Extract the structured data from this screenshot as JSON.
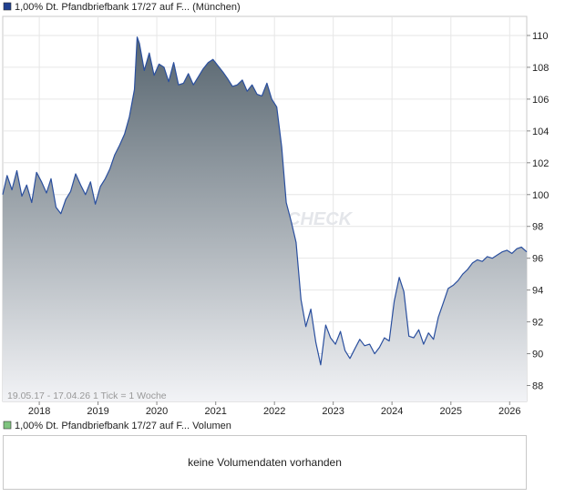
{
  "chart_data": {
    "type": "area",
    "title": "1,00% Dt. Pfandbriefbank 17/27 auf F... (München)",
    "series": [
      {
        "name": "1,00% Dt. Pfandbriefbank 17/27 auf F... (München)",
        "x": [
          "2017-05-19",
          "2017-06-15",
          "2017-07-15",
          "2017-08-15",
          "2017-09-15",
          "2017-10-15",
          "2017-11-15",
          "2017-12-15",
          "2018-01-15",
          "2018-02-15",
          "2018-03-15",
          "2018-04-15",
          "2018-05-15",
          "2018-06-15",
          "2018-07-15",
          "2018-08-15",
          "2018-09-15",
          "2018-10-15",
          "2018-11-15",
          "2018-12-15",
          "2019-01-15",
          "2019-02-15",
          "2019-03-15",
          "2019-04-15",
          "2019-05-15",
          "2019-06-15",
          "2019-07-15",
          "2019-08-15",
          "2019-09-01",
          "2019-09-15",
          "2019-10-15",
          "2019-11-15",
          "2019-12-15",
          "2020-01-15",
          "2020-02-15",
          "2020-03-15",
          "2020-04-15",
          "2020-05-15",
          "2020-06-15",
          "2020-07-15",
          "2020-08-15",
          "2020-09-15",
          "2020-10-15",
          "2020-11-15",
          "2020-12-15",
          "2021-01-15",
          "2021-02-15",
          "2021-03-15",
          "2021-04-15",
          "2021-05-15",
          "2021-06-15",
          "2021-07-15",
          "2021-08-15",
          "2021-09-15",
          "2021-10-15",
          "2021-11-15",
          "2021-12-15",
          "2022-01-15",
          "2022-02-15",
          "2022-03-15",
          "2022-04-15",
          "2022-05-15",
          "2022-06-15",
          "2022-07-15",
          "2022-08-15",
          "2022-09-15",
          "2022-10-15",
          "2022-11-15",
          "2022-12-15",
          "2023-01-15",
          "2023-02-15",
          "2023-03-15",
          "2023-04-15",
          "2023-05-15",
          "2023-06-15",
          "2023-07-15",
          "2023-08-15",
          "2023-09-15",
          "2023-10-15",
          "2023-11-15",
          "2023-12-15",
          "2024-01-15",
          "2024-02-15",
          "2024-03-15",
          "2024-04-15",
          "2024-05-15",
          "2024-06-15",
          "2024-07-15",
          "2024-08-15",
          "2024-09-15",
          "2024-10-15",
          "2024-11-15",
          "2024-12-15",
          "2025-01-15",
          "2025-02-15",
          "2025-03-15",
          "2025-04-15",
          "2025-05-15",
          "2025-06-15",
          "2025-07-15",
          "2025-08-15",
          "2025-09-15",
          "2025-10-15",
          "2025-11-15",
          "2025-12-15",
          "2026-01-15",
          "2026-02-15",
          "2026-03-15",
          "2026-04-17"
        ],
        "values": [
          100.0,
          101.2,
          100.3,
          101.5,
          99.9,
          100.6,
          99.5,
          101.4,
          100.8,
          100.1,
          101.0,
          99.2,
          98.8,
          99.7,
          100.2,
          101.3,
          100.6,
          100.0,
          100.8,
          99.4,
          100.5,
          101.0,
          101.6,
          102.5,
          103.1,
          103.8,
          104.9,
          106.6,
          109.9,
          109.5,
          107.8,
          108.9,
          107.5,
          108.2,
          108.0,
          107.1,
          108.3,
          106.9,
          107.0,
          107.6,
          106.9,
          107.4,
          107.9,
          108.3,
          108.5,
          108.1,
          107.7,
          107.3,
          106.8,
          106.9,
          107.2,
          106.5,
          106.9,
          106.3,
          106.2,
          107.0,
          106.0,
          105.5,
          103.0,
          99.5,
          98.3,
          97.0,
          93.4,
          91.7,
          92.8,
          90.7,
          89.3,
          91.8,
          91.0,
          90.6,
          91.4,
          90.2,
          89.7,
          90.3,
          90.9,
          90.5,
          90.6,
          90.0,
          90.4,
          91.0,
          90.8,
          93.3,
          94.8,
          93.9,
          91.1,
          91.0,
          91.5,
          90.6,
          91.3,
          90.9,
          92.3,
          93.2,
          94.1,
          94.3,
          94.6,
          95.0,
          95.3,
          95.7,
          95.9,
          95.8,
          96.1,
          96.0,
          96.2,
          96.4,
          96.5,
          96.3,
          96.6,
          96.7,
          96.4
        ]
      }
    ],
    "ylim": [
      87,
      111.2
    ],
    "yticks": [
      88,
      90,
      92,
      94,
      96,
      98,
      100,
      102,
      104,
      106,
      108,
      110
    ],
    "xtick_labels": [
      "2018",
      "2019",
      "2020",
      "2021",
      "2022",
      "2023",
      "2024",
      "2025",
      "2026"
    ],
    "xtick_dates": [
      "2018-01-01",
      "2019-01-01",
      "2020-01-01",
      "2021-01-01",
      "2022-01-01",
      "2023-01-01",
      "2024-01-01",
      "2025-01-01",
      "2026-01-01"
    ],
    "xlim": [
      "2017-05-19",
      "2026-04-17"
    ],
    "grid": true,
    "line_color": "#2a4f9e",
    "fill_top_color": "#56646e",
    "fill_bottom_color": "#f2f3f6",
    "range_note": "19.05.17 - 17.04.26   1 Tick = 1 Woche"
  },
  "volume_panel": {
    "legend_label": "1,00% Dt. Pfandbriefbank 17/27 auf F... Volumen",
    "legend_color": "#7fc47f",
    "message": "keine Volumendaten vorhanden"
  },
  "watermark": "CHECK"
}
